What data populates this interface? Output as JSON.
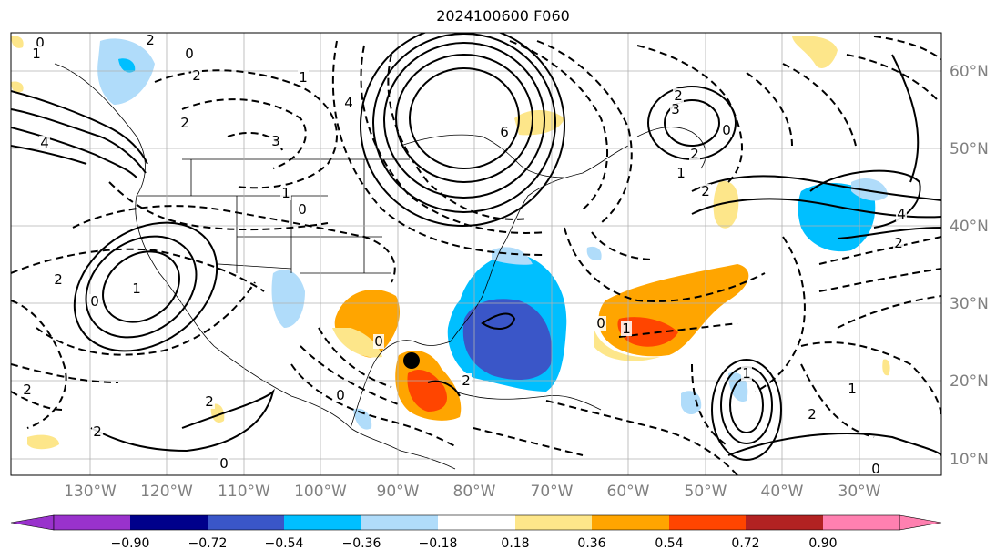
{
  "title": "2024100600 F060",
  "map": {
    "longitude_labels": [
      "130°W",
      "120°W",
      "110°W",
      "100°W",
      "90°W",
      "80°W",
      "70°W",
      "60°W",
      "50°W",
      "40°W",
      "30°W"
    ],
    "latitude_labels": [
      "60°N",
      "50°N",
      "40°N",
      "30°N",
      "20°N",
      "10°N"
    ],
    "marker": "storm-center-dot"
  },
  "colorbar": {
    "tick_labels": [
      "−0.90",
      "−0.72",
      "−0.54",
      "−0.36",
      "−0.18",
      "0.18",
      "0.36",
      "0.54",
      "0.72",
      "0.90"
    ],
    "colors": [
      "#9932cc",
      "#00008b",
      "#3a56c8",
      "#00bfff",
      "#b0dcfa",
      "#ffffff",
      "#fde68a",
      "#ffa500",
      "#ff4500",
      "#b22222",
      "#ff80b0"
    ]
  },
  "contour_labels": [
    "0",
    "2",
    "4",
    "1",
    "0",
    "2",
    "3",
    "1",
    "0",
    "6",
    "4",
    "2",
    "3",
    "2",
    "0",
    "1",
    "2",
    "4",
    "2",
    "1",
    "0",
    "2",
    "0",
    "1",
    "2",
    "2",
    "0",
    "2",
    "0",
    "2",
    "1",
    "1",
    "2",
    "0",
    "2",
    "1",
    "0"
  ]
}
